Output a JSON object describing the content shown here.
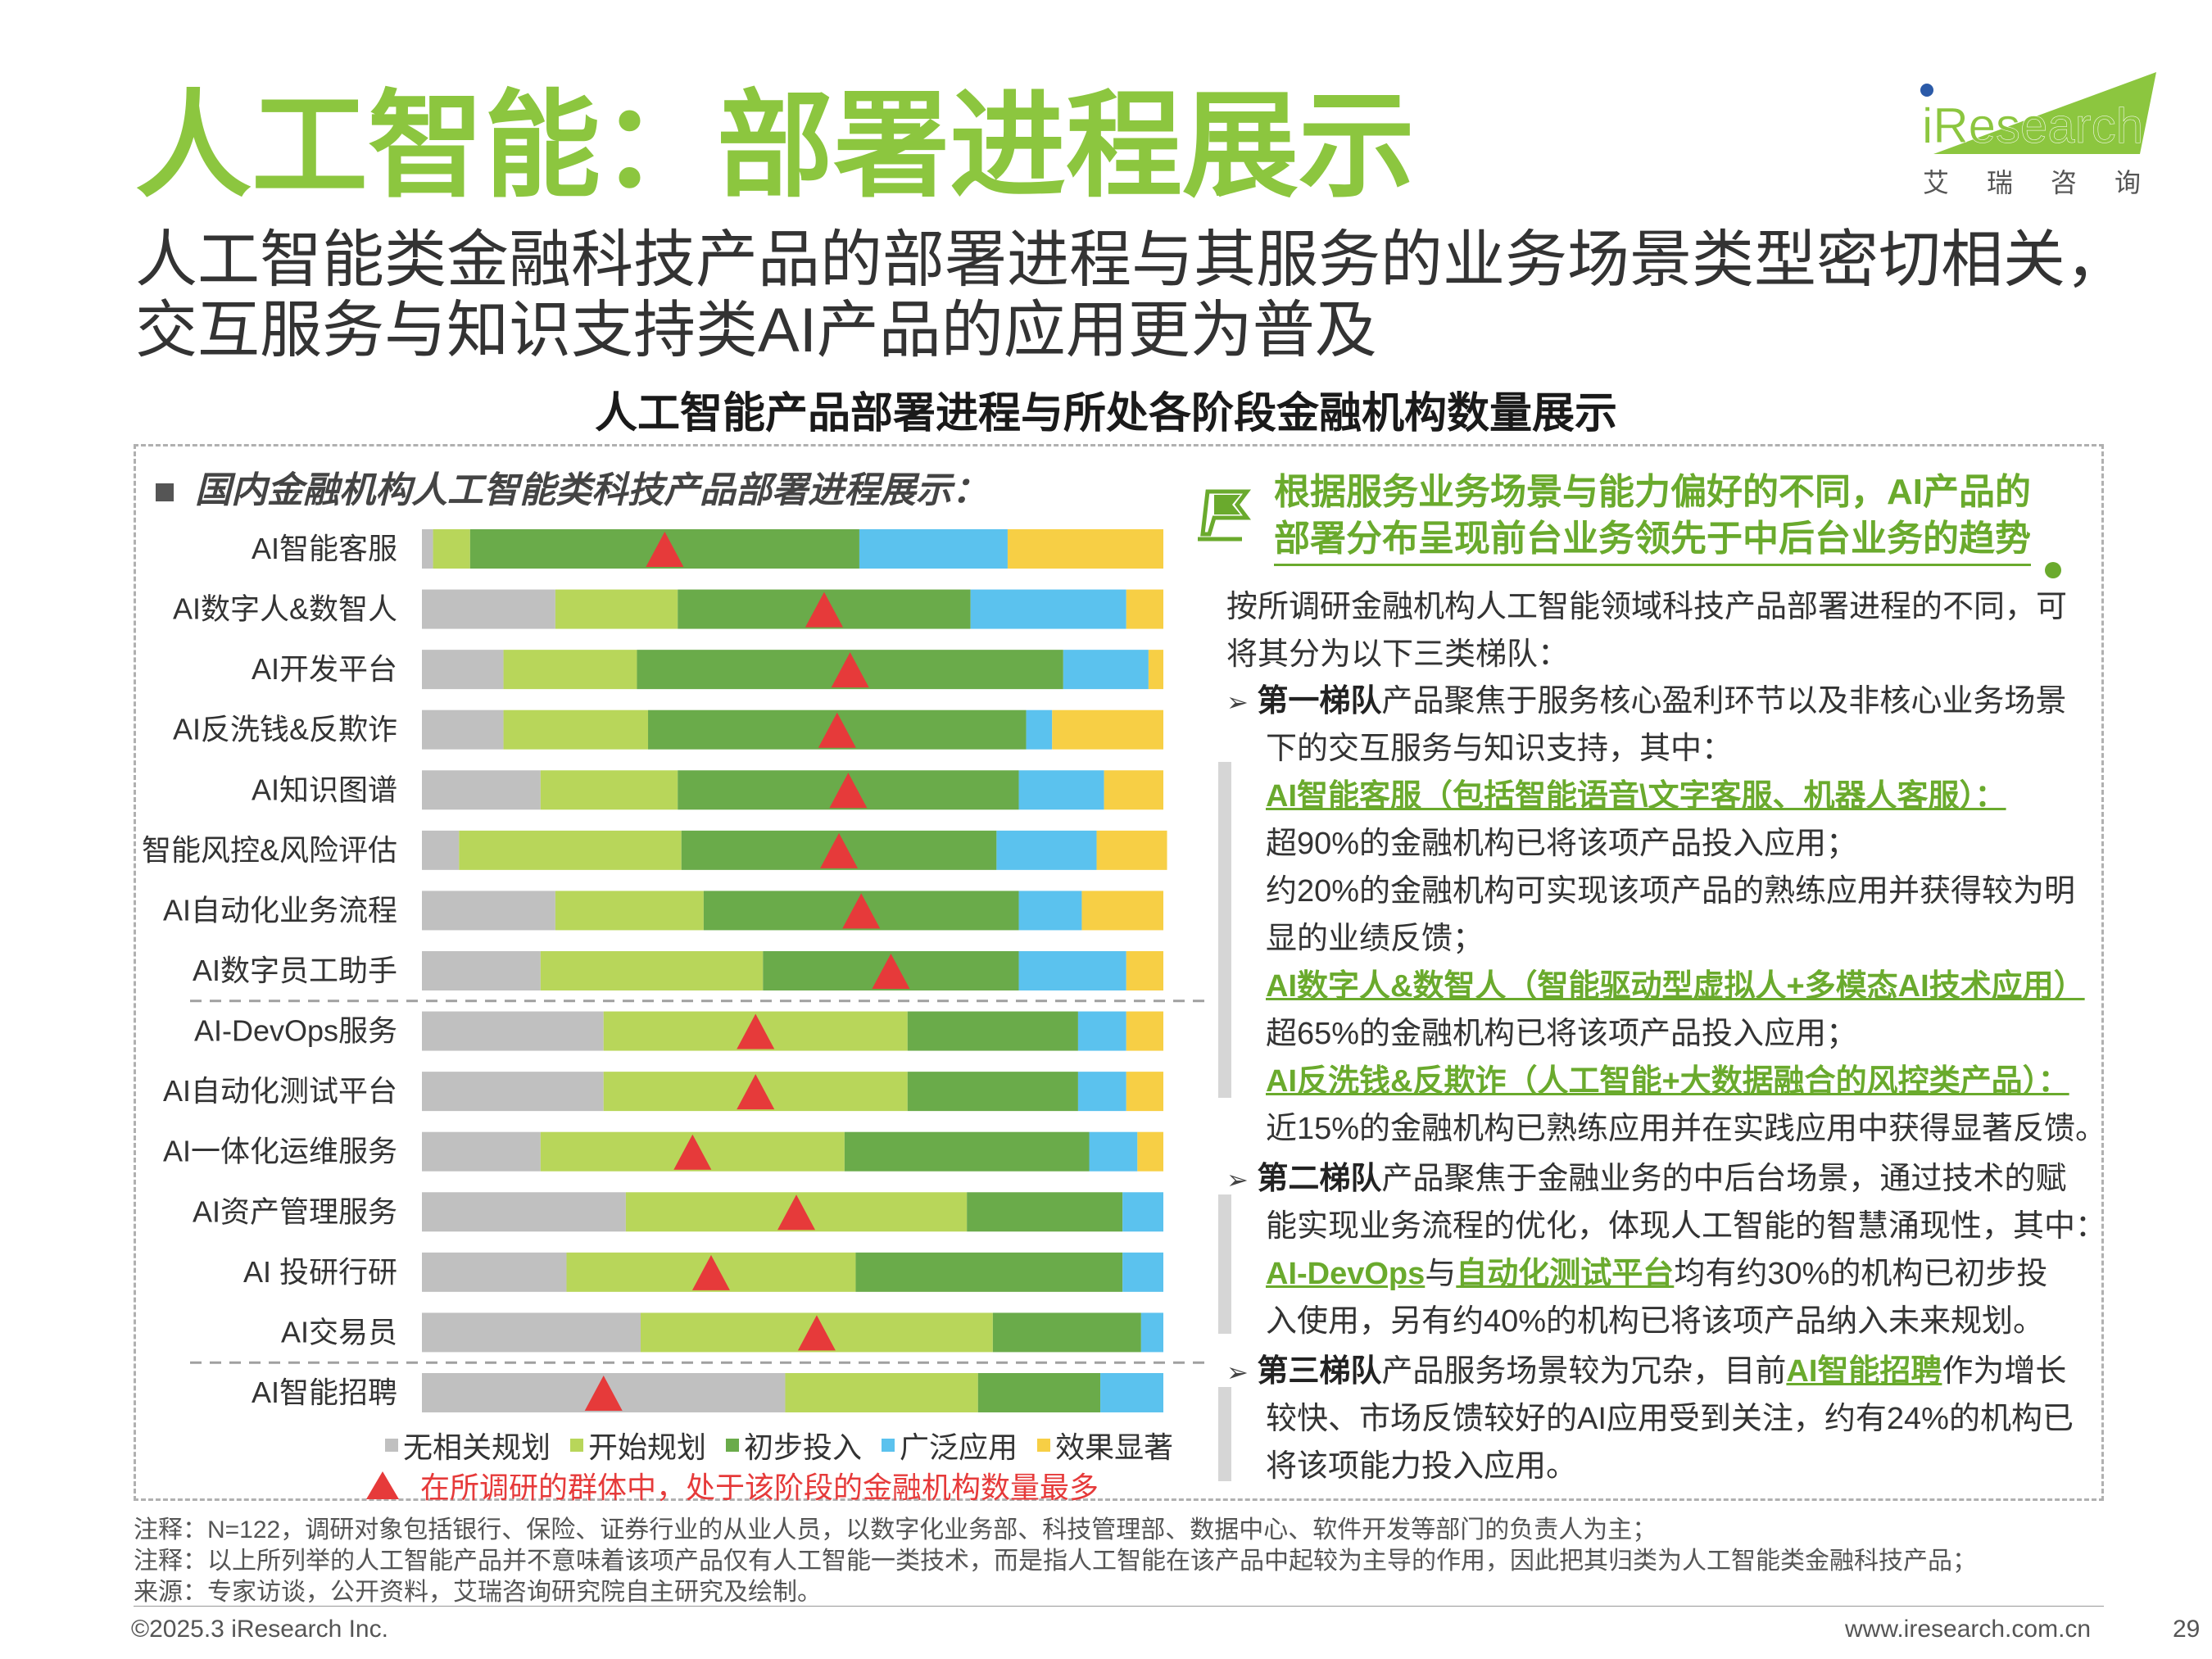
{
  "header": {
    "title": "人工智能：部署进程展示",
    "subtitle_line1": "人工智能类金融科技产品的部署进程与其服务的业务场景类型密切相关，",
    "subtitle_line2": "交互服务与知识支持类AI产品的应用更为普及"
  },
  "logo": {
    "brand": "iResearch",
    "sub": "艾瑞咨询"
  },
  "chart_title": "人工智能产品部署进程与所处各阶段金融机构数量展示",
  "chart_section_title": "国内金融机构人工智能类科技产品部署进程展示：",
  "chart_data": {
    "type": "bar",
    "orientation": "horizontal",
    "stacked": true,
    "unit": "percent of institutions",
    "xlim": [
      0,
      100
    ],
    "categories": [
      "AI智能客服",
      "AI数字人&数智人",
      "AI开发平台",
      "AI反洗钱&反欺诈",
      "AI知识图谱",
      "智能风控&风险评估",
      "AI自动化业务流程",
      "AI数字员工助手",
      "AI-DevOps服务",
      "AI自动化测试平台",
      "AI一体化运维服务",
      "AI资产管理服务",
      "AI 投研行研",
      "AI交易员",
      "AI智能招聘"
    ],
    "series": [
      {
        "name": "无相关规划",
        "color": "#c0c0c0",
        "values": [
          1.5,
          18,
          11,
          11,
          16,
          5,
          18,
          16,
          24.5,
          24.5,
          16,
          27.5,
          19.5,
          29.5,
          49
        ]
      },
      {
        "name": "开始规划",
        "color": "#b8d65a",
        "values": [
          5,
          16.5,
          18,
          19.5,
          18.5,
          30,
          20,
          30,
          41,
          41,
          41,
          46,
          39,
          47.5,
          26
        ]
      },
      {
        "name": "初步投入",
        "color": "#6aab4a",
        "values": [
          52.5,
          39.5,
          57.5,
          51,
          46,
          42.5,
          42.5,
          34.5,
          23,
          23,
          33,
          21,
          36,
          20,
          16.5
        ]
      },
      {
        "name": "广泛应用",
        "color": "#5bc2ee",
        "values": [
          20,
          21,
          11.5,
          3.5,
          11.5,
          13.5,
          8.5,
          14.5,
          6.5,
          6.5,
          6.5,
          5.5,
          5.5,
          3,
          8.5
        ]
      },
      {
        "name": "效果显著",
        "color": "#f7cf45",
        "values": [
          21,
          5,
          2,
          15,
          8,
          9.5,
          11,
          5,
          5,
          5,
          3.5,
          0,
          0,
          0,
          0
        ]
      }
    ],
    "max_stage_index": [
      2,
      2,
      2,
      2,
      2,
      2,
      2,
      2,
      1,
      1,
      1,
      1,
      1,
      1,
      0
    ],
    "groups": [
      [
        0,
        7
      ],
      [
        8,
        13
      ],
      [
        14,
        14
      ]
    ],
    "legend_placement": "bottom"
  },
  "legend_note": "在所调研的群体中，处于该阶段的金融机构数量最多",
  "right_panel": {
    "heading_line1": "根据服务业务场景与能力偏好的不同，AI产品的",
    "heading_line2": "部署分布呈现前台业务领先于中后台业务的趋势",
    "intro_line1": "按所调研金融机构人工智能领域科技产品部署进程的不同，可",
    "intro_line2": "将其分为以下三类梯队：",
    "tier1_label": "第一梯队",
    "tier1_line1": "产品聚焦于服务核心盈利环节以及非核心业务场景",
    "tier1_line2": "下的交互服务与知识支持，其中：",
    "item1_title": "AI智能客服（包括智能语音\\文字客服、机器人客服）：",
    "item1_line1": "超90%的金融机构已将该项产品投入应用；",
    "item1_line2": "约20%的金融机构可实现该项产品的熟练应用并获得较为明",
    "item1_line3": "显的业绩反馈；",
    "item2_title": "AI数字人&数智人（智能驱动型虚拟人+多模态AI技术应用）",
    "item2_line1": "超65%的金融机构已将该项产品投入应用；",
    "item3_title": "AI反洗钱&反欺诈（人工智能+大数据融合的风控类产品）：",
    "item3_line1": "近15%的金融机构已熟练应用并在实践应用中获得显著反馈。",
    "tier2_label": "第二梯队",
    "tier2_line1": "产品聚焦于金融业务的中后台场景，通过技术的赋",
    "tier2_line2": "能实现业务流程的优化，体现人工智能的智慧涌现性，其中：",
    "tier2_hl1": "AI-DevOps",
    "tier2_mid": "与",
    "tier2_hl2": "自动化测试平台",
    "tier2_line3_rest": "均有约30%的机构已初步投",
    "tier2_line4": "入使用，另有约40%的机构已将该项产品纳入未来规划。",
    "tier3_label": "第三梯队",
    "tier3_line1a": "产品服务场景较为冗杂，目前",
    "tier3_hl": "AI智能招聘",
    "tier3_line1b": "作为增长",
    "tier3_line2": "较快、市场反馈较好的AI应用受到关注，约有24%的机构已",
    "tier3_line3": "将该项能力投入应用。"
  },
  "footer": {
    "note1": "注释：N=122，调研对象包括银行、保险、证券行业的从业人员，以数字化业务部、科技管理部、数据中心、软件开发等部门的负责人为主；",
    "note2": "注释：以上所列举的人工智能产品并不意味着该项产品仅有人工智能一类技术，而是指人工智能在该产品中起较为主导的作用，因此把其归类为人工智能类金融科技产品；",
    "source": "来源：专家访谈，公开资料，艾瑞咨询研究院自主研究及绘制。",
    "copyright": "©2025.3 iResearch Inc.",
    "website": "www.iresearch.com.cn",
    "page": "29"
  }
}
